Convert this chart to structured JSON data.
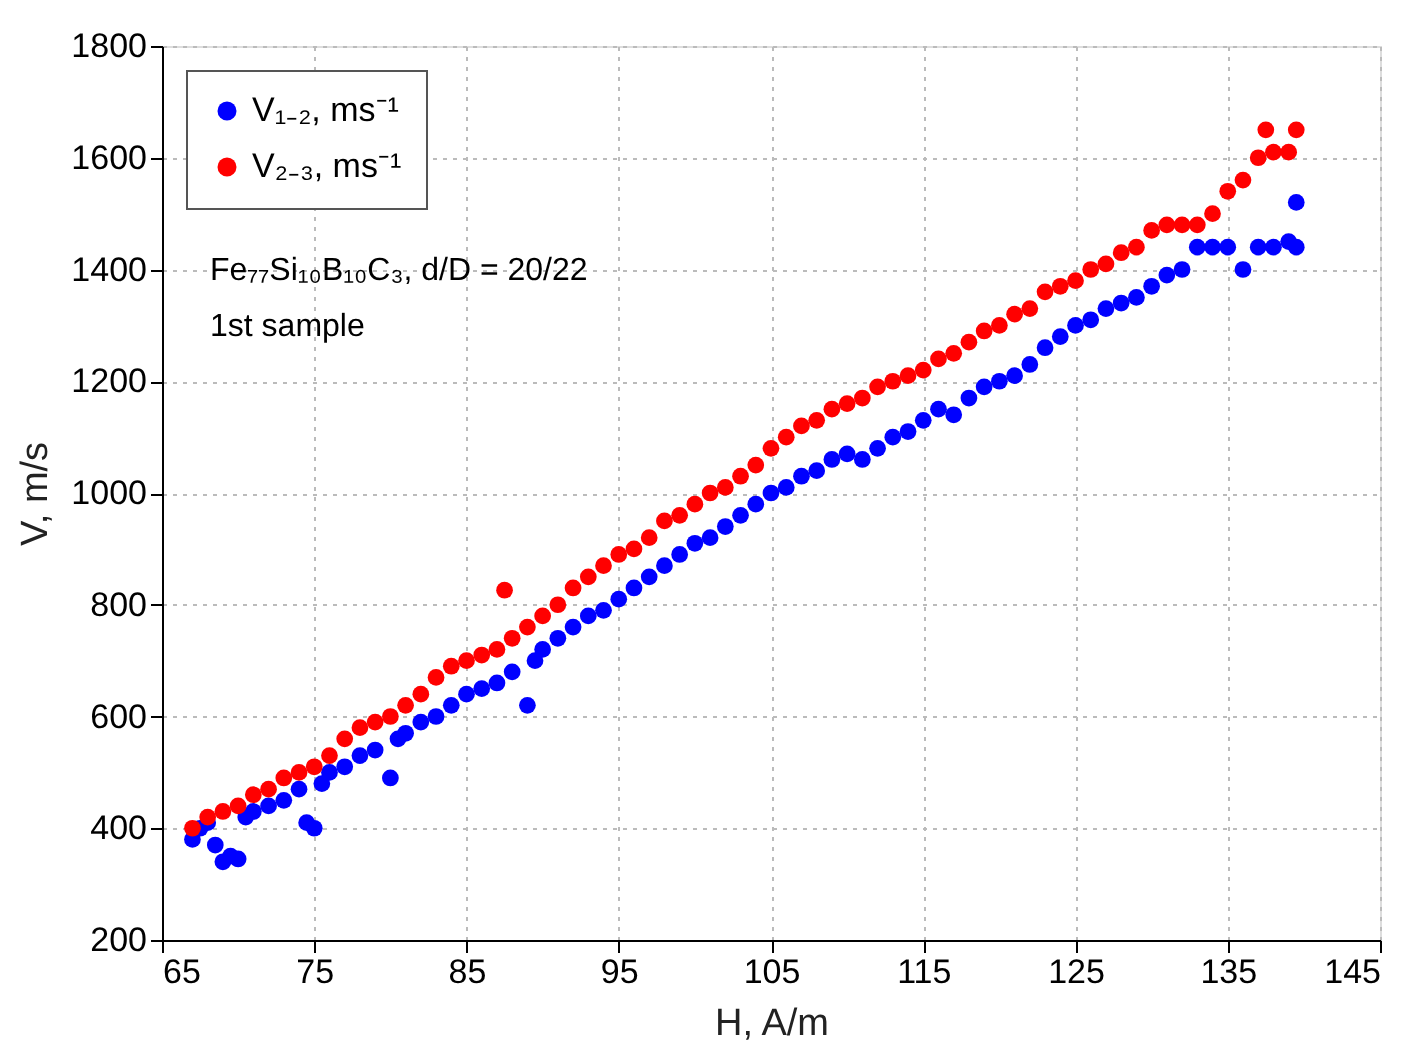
{
  "chart_data": {
    "type": "scatter",
    "xlabel": "H, A/m",
    "ylabel": "V, m/s",
    "xlim": [
      65,
      145
    ],
    "xticks": [
      65,
      75,
      85,
      95,
      105,
      115,
      125,
      135,
      145
    ],
    "ylim": [
      200,
      1800
    ],
    "yticks": [
      200,
      400,
      600,
      800,
      1000,
      1200,
      1400,
      1600,
      1800
    ],
    "grid": true,
    "legend": "top left",
    "marker": "circle",
    "annotations": [
      "Fe₇₇Si₁₀B₁₀C₃, d/D = 20/22",
      "1st sample"
    ],
    "series": [
      {
        "name": "V₂₋₃, ms⁻¹",
        "color": "#ff0000",
        "x": [
          67,
          68,
          69,
          70,
          71,
          72,
          73,
          74,
          75,
          76,
          77,
          78,
          79,
          80,
          81,
          82,
          83,
          84,
          85,
          86,
          87,
          87.5,
          88,
          89,
          90,
          91,
          92,
          93,
          94,
          95,
          96,
          97,
          98,
          99,
          100,
          101,
          102,
          103,
          104,
          105,
          106,
          107,
          108,
          109,
          110,
          111,
          112,
          113,
          114,
          115,
          116,
          117,
          118,
          119,
          120,
          121,
          122,
          123,
          124,
          125,
          126,
          127,
          128,
          129,
          130,
          131,
          132,
          133,
          134,
          135,
          136,
          137,
          137.5,
          138,
          139,
          139.5
        ],
        "values": [
          400,
          420,
          430,
          440,
          460,
          470,
          490,
          500,
          510,
          530,
          560,
          580,
          590,
          600,
          620,
          640,
          670,
          690,
          700,
          710,
          720,
          826,
          740,
          760,
          780,
          800,
          830,
          850,
          870,
          890,
          900,
          920,
          950,
          960,
          980,
          1000,
          1010,
          1030,
          1050,
          1080,
          1100,
          1120,
          1130,
          1150,
          1160,
          1170,
          1190,
          1200,
          1210,
          1220,
          1240,
          1250,
          1270,
          1290,
          1300,
          1320,
          1330,
          1360,
          1370,
          1380,
          1400,
          1410,
          1430,
          1440,
          1470,
          1480,
          1480,
          1480,
          1500,
          1540,
          1560,
          1600,
          1650,
          1610,
          1610,
          1650
        ]
      },
      {
        "name": "V₁₋₂, ms⁻¹",
        "color": "#0000ff",
        "x": [
          67,
          67.5,
          68,
          68.5,
          69,
          69.5,
          70,
          70.5,
          71,
          72,
          73,
          74,
          74.5,
          75,
          75.5,
          76,
          77,
          78,
          79,
          80,
          80.5,
          81,
          82,
          83,
          84,
          85,
          86,
          87,
          88,
          89,
          89.5,
          90,
          91,
          92,
          93,
          94,
          95,
          96,
          97,
          98,
          99,
          100,
          101,
          102,
          103,
          104,
          105,
          106,
          107,
          108,
          109,
          110,
          111,
          112,
          113,
          114,
          115,
          116,
          117,
          118,
          119,
          120,
          121,
          122,
          123,
          124,
          125,
          126,
          127,
          128,
          129,
          130,
          131,
          132,
          133,
          134,
          135,
          136,
          137,
          138,
          139,
          139.5,
          139.5
        ],
        "values": [
          380,
          400,
          410,
          370,
          340,
          350,
          345,
          420,
          430,
          440,
          450,
          470,
          410,
          400,
          480,
          500,
          510,
          530,
          540,
          490,
          560,
          570,
          590,
          600,
          620,
          640,
          650,
          660,
          680,
          620,
          700,
          720,
          740,
          760,
          780,
          790,
          810,
          830,
          850,
          870,
          890,
          910,
          920,
          940,
          960,
          980,
          1000,
          1010,
          1030,
          1040,
          1060,
          1070,
          1060,
          1080,
          1100,
          1110,
          1130,
          1150,
          1140,
          1170,
          1190,
          1200,
          1210,
          1230,
          1260,
          1280,
          1300,
          1310,
          1330,
          1340,
          1350,
          1370,
          1390,
          1400,
          1440,
          1440,
          1440,
          1400,
          1440,
          1440,
          1450,
          1520,
          1440
        ]
      }
    ]
  }
}
